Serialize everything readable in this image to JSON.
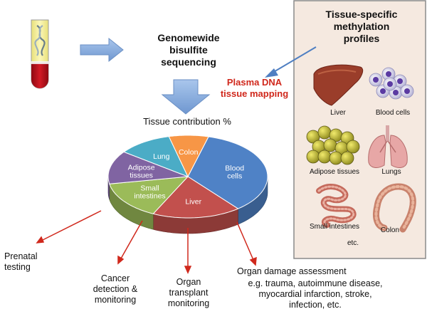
{
  "headline": {
    "sequencing": "Genomewide\nbisulfite\nsequencing",
    "mapping": "Plasma DNA\ntissue mapping",
    "pie_title": "Tissue contribution %"
  },
  "panel": {
    "title": "Tissue-specific\nmethylation\nprofiles",
    "items": [
      {
        "name": "liver",
        "label": "Liver"
      },
      {
        "name": "blood-cells",
        "label": "Blood cells"
      },
      {
        "name": "adipose-tissues",
        "label": "Adipose tissues"
      },
      {
        "name": "lungs",
        "label": "Lungs"
      },
      {
        "name": "small-intestines",
        "label": "Small intestines"
      },
      {
        "name": "colon",
        "label": "Colon"
      }
    ],
    "etc": "etc."
  },
  "chart_data": {
    "type": "pie",
    "title": "Tissue contribution %",
    "categories": [
      "Blood cells",
      "Liver",
      "Small intestines",
      "Adipose tissues",
      "Lung",
      "Colon"
    ],
    "values": [
      35,
      18,
      15,
      13,
      11,
      8
    ],
    "labels": [
      "Blood\ncells",
      "Liver",
      "Small\nintestines",
      "Adipose\ntissues",
      "Lung",
      "Colon"
    ],
    "colors": [
      "#4f82c6",
      "#c2504d",
      "#9bbb59",
      "#8064a2",
      "#4bacc6",
      "#f79646"
    ]
  },
  "applications": [
    {
      "name": "prenatal",
      "text": "Prenatal\ntesting"
    },
    {
      "name": "cancer",
      "text": "Cancer\ndetection &\nmonitoring"
    },
    {
      "name": "transplant",
      "text": "Organ\ntransplant\nmonitoring"
    },
    {
      "name": "damage-title",
      "text": "Organ damage assessment"
    },
    {
      "name": "damage-detail",
      "text": "e.g. trauma, autoimmune disease,\nmyocardial infarction, stroke,\ninfection, etc."
    }
  ],
  "colors": {
    "panel_bg": "#f5e9e0",
    "panel_border": "#8a8a8a",
    "arrow_blue": "#8eb4e3",
    "arrow_red": "#d0281c",
    "mapping_text": "#d0281c"
  }
}
